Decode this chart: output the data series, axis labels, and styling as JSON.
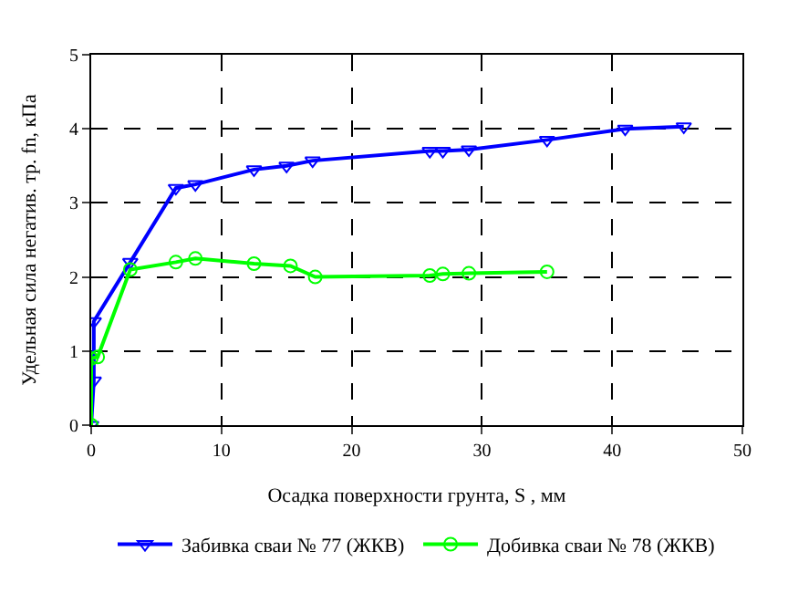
{
  "chart_data": {
    "type": "line",
    "xlabel": "Осадка поверхности грунта, S , мм",
    "ylabel": "Удельная сила негатив. тр. fn, кПа",
    "xlim": [
      0,
      50
    ],
    "ylim": [
      0,
      5
    ],
    "xticks": [
      0,
      10,
      20,
      30,
      40,
      50
    ],
    "yticks": [
      0,
      1,
      2,
      3,
      4,
      5
    ],
    "grid": true,
    "legend": "bottom",
    "series": [
      {
        "name": "Забивка сваи № 77 (ЖКВ)",
        "color": "#0000ff",
        "marker": "triangle",
        "x": [
          0,
          0.2,
          0.2,
          3,
          6.5,
          8,
          12.5,
          15,
          17,
          26,
          27,
          29,
          35,
          41,
          45.5
        ],
        "values": [
          0,
          0.6,
          1.4,
          2.2,
          3.2,
          3.25,
          3.45,
          3.5,
          3.57,
          3.7,
          3.7,
          3.72,
          3.85,
          4.0,
          4.03
        ]
      },
      {
        "name": "Добивка сваи № 78 (ЖКВ)",
        "color": "#00ff00",
        "marker": "circle",
        "x": [
          0,
          0,
          0.5,
          3,
          6.5,
          8,
          12.5,
          15.3,
          17.2,
          26,
          27,
          29,
          35
        ],
        "values": [
          0,
          0.9,
          0.92,
          2.1,
          2.2,
          2.25,
          2.18,
          2.15,
          2.0,
          2.02,
          2.04,
          2.05,
          2.07
        ]
      }
    ]
  }
}
